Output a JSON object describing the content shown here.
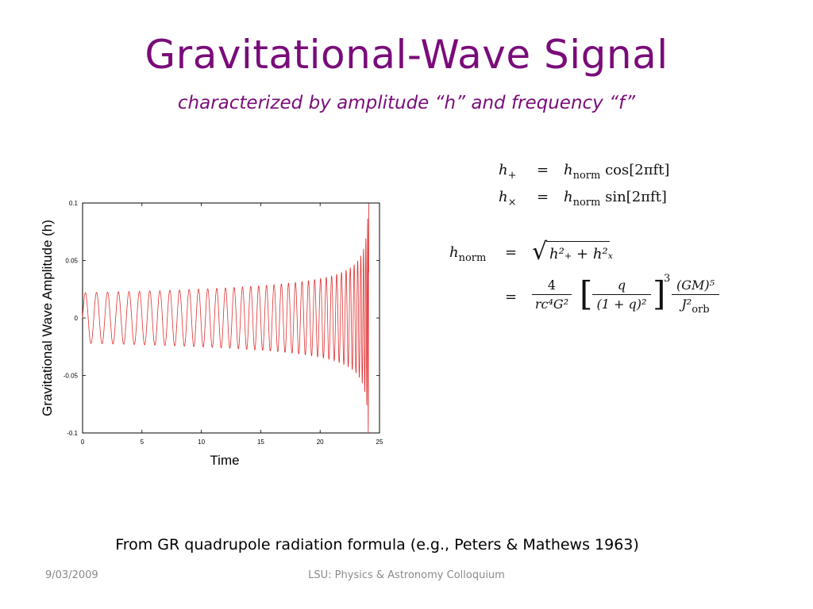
{
  "slide": {
    "title": "Gravitational-Wave Signal",
    "subtitle": "characterized by amplitude “h” and frequency “f”",
    "source_note": "From GR quadrupole radiation formula (e.g., Peters & Mathews 1963)",
    "footer_date": "9/03/2009",
    "footer_center": "LSU:  Physics & Astronomy Colloquium",
    "accent_color": "#7a0c7a"
  },
  "equations": {
    "h_plus_lhs": "h",
    "h_plus_sub": "+",
    "h_plus_rhs_h": "h",
    "h_plus_rhs_sub": "norm",
    "h_plus_rhs_fn": "cos[2πft]",
    "h_cross_lhs": "h",
    "h_cross_sub": "×",
    "h_cross_rhs_h": "h",
    "h_cross_rhs_sub": "norm",
    "h_cross_rhs_fn": "sin[2πft]",
    "equals": "=",
    "hnorm_lhs": "h",
    "hnorm_sub": "norm",
    "sqrt_content": "h²₊ + h²ₓ",
    "frac1_num": "4",
    "frac1_den": "rc⁴G²",
    "bracket_num": "q",
    "bracket_den": "(1 + q)²",
    "bracket_exp": "3",
    "frac2_num": "(GM)⁵",
    "frac2_den": "J²",
    "frac2_den_sub": "orb"
  },
  "chart_data": {
    "type": "line",
    "xlabel": "Time",
    "ylabel": "Gravitational Wave Amplitude (h)",
    "xlim": [
      0,
      25
    ],
    "ylim": [
      -0.1,
      0.1
    ],
    "x_ticks": [
      0,
      5,
      10,
      15,
      20,
      25
    ],
    "x_tick_labels": [
      "0",
      "5",
      "10",
      "15",
      "20",
      "25"
    ],
    "y_ticks": [
      0.1,
      0.05,
      0,
      -0.05,
      -0.1
    ],
    "y_tick_labels": [
      "0.1",
      "0.05",
      "0",
      "-0.05",
      "-0.1"
    ],
    "grid": false,
    "line_color": "#e03030",
    "series": [
      {
        "model": "inspiral chirp",
        "coalescence_time": 24.1,
        "initial_amplitude": 0.022,
        "final_amplitude": 0.1,
        "initial_period": 0.95
      }
    ]
  }
}
